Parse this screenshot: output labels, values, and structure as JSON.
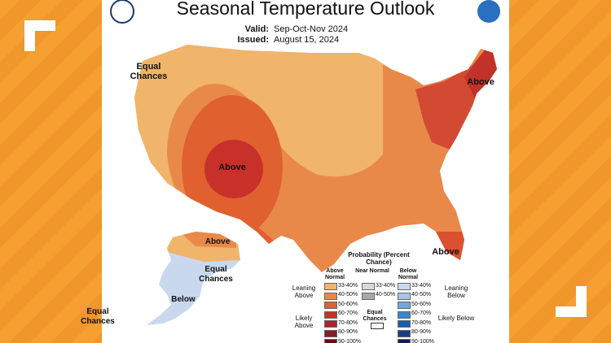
{
  "header": {
    "title": "Seasonal Temperature Outlook",
    "valid_label": "Valid:",
    "valid": "Sep-Oct-Nov 2024",
    "issued_label": "Issued:",
    "issued": "August 15, 2024"
  },
  "map_labels": [
    "Equal Chances",
    "Above",
    "Above",
    "Above",
    "Above",
    "Equal Chances",
    "Below",
    "Equal Chances"
  ],
  "legend": {
    "title": "Probability (Percent Chance)",
    "columns": [
      "Above Normal",
      "Near Normal",
      "Below Normal"
    ],
    "leaning_above": "Leaning Above",
    "likely_above": "Likely Above",
    "leaning_below": "Leaning Below",
    "likely_below": "Likely Below",
    "equal_chances": "Equal Chances",
    "above": [
      "33-40%",
      "40-50%",
      "50-60%",
      "60-70%",
      "70-80%",
      "80-90%",
      "90-100%"
    ],
    "near": [
      "33-40%",
      "40-50%"
    ],
    "below": [
      "33-40%",
      "40-50%",
      "50-60%",
      "60-70%",
      "70-80%",
      "80-90%",
      "90-100%"
    ]
  }
}
